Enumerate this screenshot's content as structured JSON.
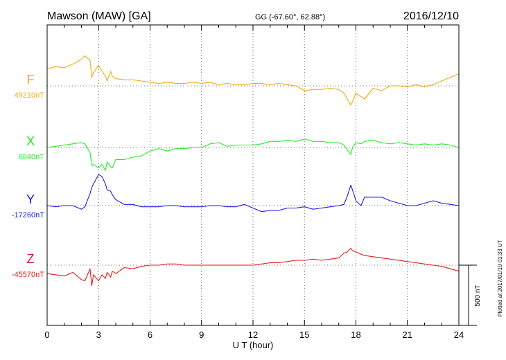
{
  "header": {
    "station": "Mawson (MAW)  [GA]",
    "coords": "GG (-67.60°,  62.88°)",
    "date": "2016/12/10"
  },
  "footer": {
    "scale_label": "500 nT",
    "plotted_note": "Plotted at 2017/01/10 01:33 UT"
  },
  "chart_data": {
    "type": "line",
    "xlabel": "U T (hour)",
    "x_ticks": [
      "0",
      "3",
      "6",
      "9",
      "12",
      "15",
      "18",
      "21",
      "24"
    ],
    "xlim": [
      0,
      24
    ],
    "grid": true,
    "units": "nT",
    "scale_bar_nT": 500,
    "x": [
      0,
      0.5,
      1,
      1.5,
      2,
      2.2,
      2.5,
      2.6,
      2.7,
      3,
      3.2,
      3.4,
      3.5,
      3.7,
      3.8,
      4,
      4.5,
      5,
      5.5,
      6,
      6.5,
      7,
      7.5,
      8,
      8.5,
      9,
      9.5,
      10,
      10.5,
      11,
      11.5,
      12,
      12.5,
      13,
      13.5,
      14,
      14.5,
      15,
      15.5,
      16,
      16.5,
      17,
      17.3,
      17.5,
      17.7,
      17.8,
      18,
      18.3,
      18.5,
      19,
      19.5,
      20,
      20.5,
      21,
      21.5,
      22,
      22.5,
      23,
      23.5,
      24
    ],
    "series": [
      {
        "name": "F",
        "baseline": "49210nT",
        "color": "#f0aa10",
        "values": [
          49350,
          49370,
          49360,
          49390,
          49430,
          49460,
          49420,
          49280,
          49320,
          49380,
          49330,
          49290,
          49250,
          49330,
          49290,
          49270,
          49260,
          49260,
          49250,
          49240,
          49230,
          49240,
          49230,
          49230,
          49240,
          49230,
          49240,
          49220,
          49230,
          49220,
          49220,
          49230,
          49230,
          49220,
          49230,
          49220,
          49210,
          49170,
          49180,
          49180,
          49190,
          49180,
          49150,
          49100,
          49050,
          49080,
          49150,
          49120,
          49100,
          49190,
          49170,
          49210,
          49210,
          49200,
          49220,
          49200,
          49220,
          49250,
          49280,
          49310
        ]
      },
      {
        "name": "X",
        "baseline": "6840nT",
        "color": "#22ee22",
        "values": [
          6840,
          6850,
          6860,
          6870,
          6880,
          6870,
          6800,
          6690,
          6700,
          6670,
          6700,
          6650,
          6720,
          6680,
          6670,
          6740,
          6740,
          6760,
          6770,
          6810,
          6830,
          6810,
          6830,
          6830,
          6840,
          6840,
          6870,
          6880,
          6850,
          6860,
          6860,
          6860,
          6870,
          6890,
          6890,
          6900,
          6890,
          6910,
          6890,
          6890,
          6880,
          6880,
          6860,
          6820,
          6780,
          6840,
          6880,
          6870,
          6890,
          6900,
          6880,
          6870,
          6880,
          6870,
          6860,
          6870,
          6860,
          6870,
          6860,
          6840
        ]
      },
      {
        "name": "Y",
        "baseline": "-17260nT",
        "color": "#1a1ae6",
        "values": [
          -17260,
          -17270,
          -17260,
          -17260,
          -17290,
          -17270,
          -17160,
          -17110,
          -17080,
          -17000,
          -17020,
          -17080,
          -17130,
          -17140,
          -17170,
          -17210,
          -17250,
          -17250,
          -17270,
          -17270,
          -17270,
          -17260,
          -17260,
          -17270,
          -17270,
          -17270,
          -17260,
          -17260,
          -17270,
          -17270,
          -17250,
          -17280,
          -17310,
          -17300,
          -17300,
          -17280,
          -17280,
          -17270,
          -17290,
          -17280,
          -17270,
          -17260,
          -17250,
          -17180,
          -17090,
          -17130,
          -17220,
          -17260,
          -17190,
          -17190,
          -17190,
          -17220,
          -17240,
          -17260,
          -17260,
          -17240,
          -17220,
          -17240,
          -17250,
          -17260
        ]
      },
      {
        "name": "Z",
        "baseline": "-45570nT",
        "color": "#e61a1a",
        "values": [
          -45640,
          -45650,
          -45660,
          -45630,
          -45690,
          -45700,
          -45600,
          -45740,
          -45650,
          -45700,
          -45650,
          -45680,
          -45630,
          -45670,
          -45620,
          -45640,
          -45590,
          -45600,
          -45580,
          -45570,
          -45570,
          -45560,
          -45560,
          -45570,
          -45570,
          -45570,
          -45570,
          -45570,
          -45570,
          -45570,
          -45570,
          -45570,
          -45560,
          -45550,
          -45550,
          -45540,
          -45530,
          -45530,
          -45520,
          -45530,
          -45520,
          -45510,
          -45470,
          -45460,
          -45430,
          -45450,
          -45460,
          -45480,
          -45490,
          -45500,
          -45510,
          -45520,
          -45530,
          -45540,
          -45550,
          -45560,
          -45570,
          -45580,
          -45600,
          -45620
        ]
      }
    ]
  }
}
